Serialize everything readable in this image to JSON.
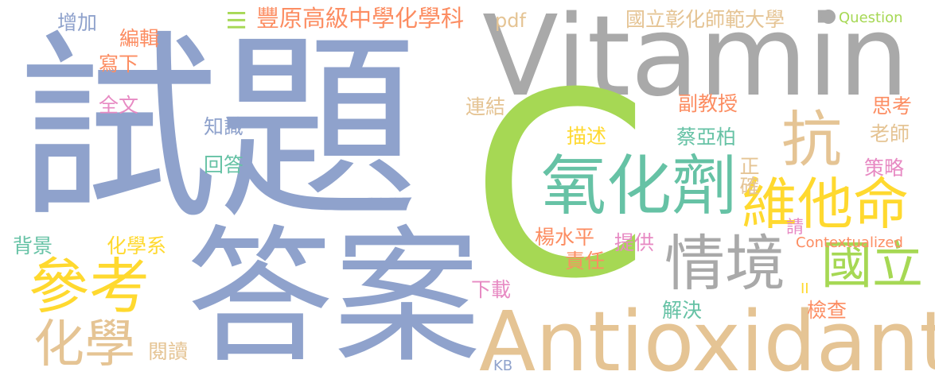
{
  "colors": {
    "blue": "#8fa2cc",
    "gray": "#a9a9a9",
    "green": "#a6d854",
    "teal": "#66c2a5",
    "yellow": "#ffd92f",
    "tan": "#e5c494",
    "orange": "#fc8d62",
    "pink": "#e78ac3"
  },
  "words": {
    "shiti": "試題",
    "daan": "答案",
    "vitamin": "Vitamin",
    "c": "C",
    "antioxidant": "Antioxidant",
    "yanghuaji": "氧化劑",
    "weitaming": "維他命",
    "kang": "抗",
    "cankao": "參考",
    "qingjing": "情境",
    "guoli": "國立",
    "huaxue": "化學",
    "fengyuan": "豐原高級中學化學科",
    "ncue": "國立彰化師範大學",
    "ziyuan": "III",
    "zengjia": "增加",
    "bianji": "編輯",
    "xiexia": "寫下",
    "quanwen": "全文",
    "zhishi": "知識",
    "huida": "回答",
    "beijing": "背景",
    "huaxuexi": "化學系",
    "yuedu": "閱讀",
    "pdf": "pdf",
    "lianjie": "連結",
    "fujiaoshou": "副教授",
    "miaoshu": "描述",
    "caiyabo": "蔡亞柏",
    "zhengque": "正確",
    "yangshuiping": "楊水平",
    "tigong": "提供",
    "zeren": "責任",
    "xiazai": "下載",
    "jiejue": "解決",
    "jiancha": "檢查",
    "sikao": "思考",
    "laoshi": "老師",
    "celue": "策略",
    "qing": "請",
    "question": "Question",
    "contextualized": "Contextualized",
    "kb": "KB",
    "ii": "II"
  }
}
